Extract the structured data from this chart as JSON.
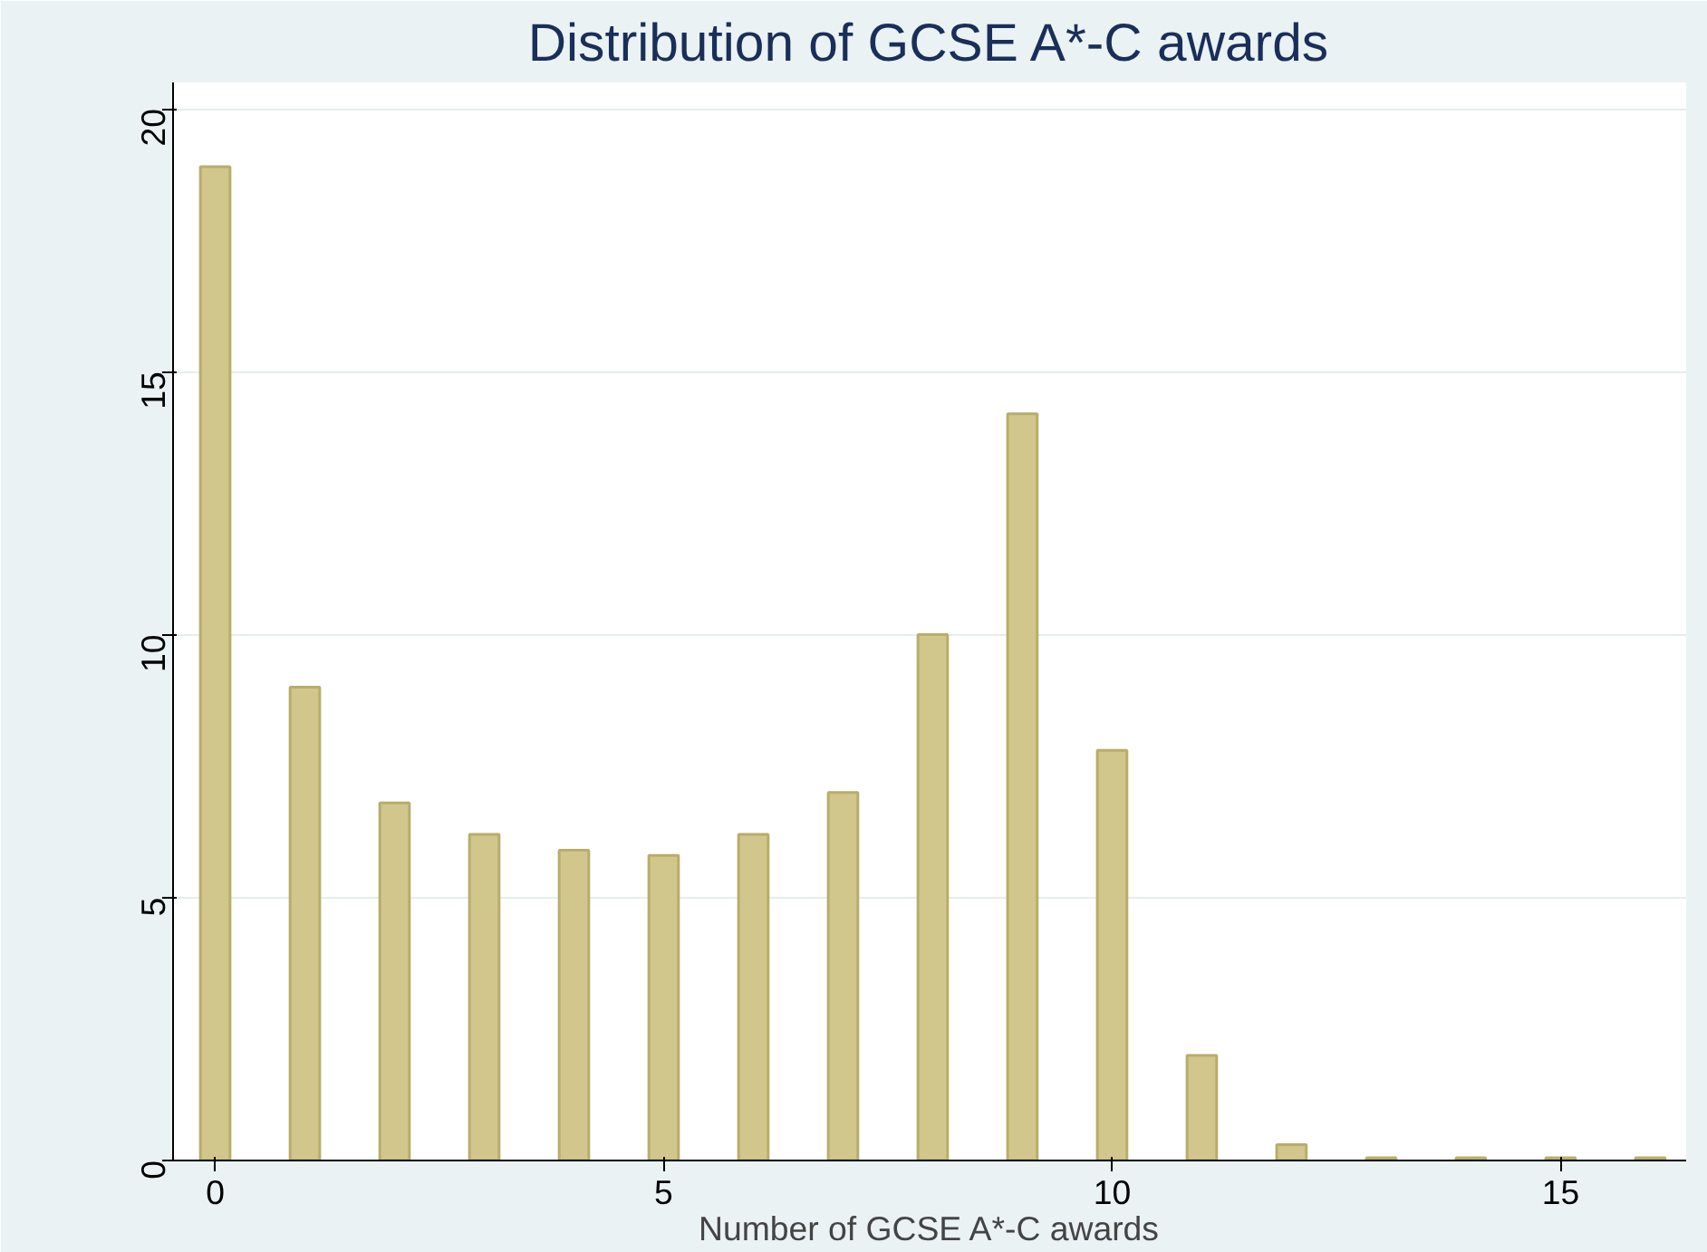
{
  "chart_data": {
    "type": "bar",
    "title": "Distribution of GCSE A*-C awards",
    "xlabel": "Number of GCSE A*-C awards",
    "x": [
      0,
      1,
      2,
      3,
      4,
      5,
      6,
      7,
      8,
      9,
      10,
      11,
      12,
      13,
      14,
      15,
      16
    ],
    "values": [
      18.9,
      9.0,
      6.8,
      6.2,
      5.9,
      5.8,
      6.2,
      7.0,
      10.0,
      14.2,
      7.8,
      2.0,
      0.3,
      0.05,
      0.05,
      0.05,
      0.05
    ],
    "color": "#d1c78c",
    "xlim": [
      -0.47,
      16.4
    ],
    "ylim": [
      0,
      20.5
    ],
    "xticks": [
      0,
      5,
      10,
      15
    ],
    "yticks": [
      0,
      5,
      10,
      15,
      20
    ],
    "grid": "y"
  }
}
